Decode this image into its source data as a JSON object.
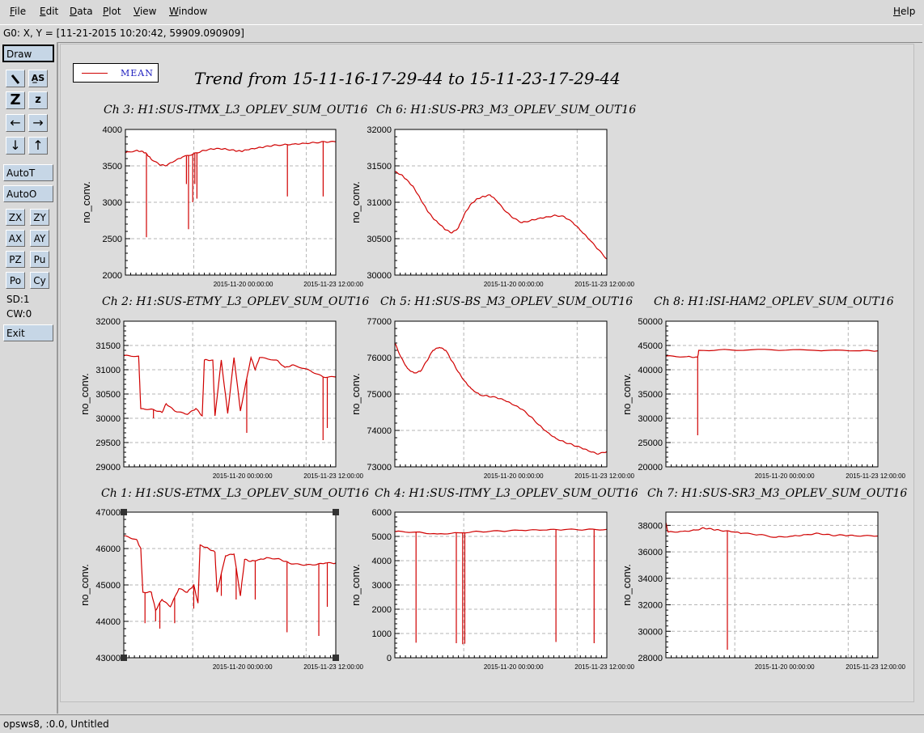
{
  "menubar": {
    "items": [
      {
        "label": "File",
        "name": "menu-file"
      },
      {
        "label": "Edit",
        "name": "menu-edit"
      },
      {
        "label": "Data",
        "name": "menu-data"
      },
      {
        "label": "Plot",
        "name": "menu-plot"
      },
      {
        "label": "View",
        "name": "menu-view"
      },
      {
        "label": "Window",
        "name": "menu-window"
      }
    ],
    "help": "Help"
  },
  "coord_readout": "G0: X, Y = [11-21-2015 10:20:42, 59909.090909]",
  "toolbox": {
    "draw": "Draw",
    "autot": "AutoT",
    "autoo": "AutoO",
    "zx": "ZX",
    "zy": "ZY",
    "ax": "AX",
    "ay": "AY",
    "pz": "PZ",
    "pu": "Pu",
    "po": "Po",
    "cy": "Cy",
    "sd": "SD:1",
    "cw": "CW:0",
    "exit": "Exit",
    "zoom_big": "Z",
    "zoom_small": "z",
    "icons": [
      "magnify-icon",
      "text-icon",
      "zoom-in-icon",
      "zoom-out-icon",
      "arrow-left-icon",
      "arrow-right-icon",
      "arrow-down-icon",
      "arrow-up-icon"
    ]
  },
  "legend": {
    "label": "MEAN",
    "color": "#d00000"
  },
  "main_title": "Trend from 15-11-16-17-29-44 to 15-11-23-17-29-44",
  "status": "opsws8, :0.0, Untitled",
  "colors": {
    "trace": "#d00000",
    "grid": "#b4b4b4",
    "accent": "#c6d6e6"
  },
  "chart_data": [
    {
      "type": "line",
      "title": "Ch 3: H1:SUS-ITMX_L3_OPLEV_SUM_OUT16",
      "ylabel": "no_conv.",
      "ylim": [
        2000,
        4000
      ],
      "yticks": [
        "2000",
        "2500",
        "3000",
        "3500",
        "4000"
      ],
      "xticks": [
        "2015-11-20 00:00:00",
        "2015-11-23 12:00:00"
      ],
      "xlim": [
        0,
        100
      ],
      "series": [
        {
          "values": [
            [
              0,
              3680
            ],
            [
              5,
              3710
            ],
            [
              8,
              3700
            ],
            [
              10,
              3670
            ],
            [
              12,
              3600
            ],
            [
              16,
              3520
            ],
            [
              19,
              3500
            ],
            [
              23,
              3560
            ],
            [
              27,
              3620
            ],
            [
              32,
              3660
            ],
            [
              36,
              3700
            ],
            [
              40,
              3730
            ],
            [
              44,
              3740
            ],
            [
              48,
              3730
            ],
            [
              52,
              3710
            ],
            [
              55,
              3700
            ],
            [
              58,
              3720
            ],
            [
              62,
              3740
            ],
            [
              66,
              3760
            ],
            [
              70,
              3780
            ],
            [
              75,
              3790
            ],
            [
              80,
              3800
            ],
            [
              85,
              3810
            ],
            [
              90,
              3820
            ],
            [
              95,
              3830
            ],
            [
              100,
              3830
            ]
          ]
        }
      ],
      "dips": [
        [
          10,
          2520
        ],
        [
          29,
          3250
        ],
        [
          30,
          2630
        ],
        [
          32,
          3000
        ],
        [
          33,
          3250
        ],
        [
          34,
          3050
        ],
        [
          77,
          3080
        ],
        [
          94,
          3080
        ]
      ]
    },
    {
      "type": "line",
      "title": "Ch 6: H1:SUS-PR3_M3_OPLEV_SUM_OUT16",
      "ylabel": "no_conv.",
      "ylim": [
        30000,
        32000
      ],
      "yticks": [
        "30000",
        "30500",
        "31000",
        "31500",
        "32000"
      ],
      "xticks": [
        "2015-11-20 00:00:00",
        "2015-11-23 12:00:00"
      ],
      "xlim": [
        0,
        100
      ],
      "series": [
        {
          "values": [
            [
              0,
              31420
            ],
            [
              3,
              31380
            ],
            [
              6,
              31300
            ],
            [
              9,
              31200
            ],
            [
              12,
              31050
            ],
            [
              15,
              30900
            ],
            [
              18,
              30780
            ],
            [
              21,
              30700
            ],
            [
              24,
              30620
            ],
            [
              27,
              30580
            ],
            [
              30,
              30650
            ],
            [
              33,
              30850
            ],
            [
              36,
              30980
            ],
            [
              39,
              31050
            ],
            [
              42,
              31080
            ],
            [
              45,
              31100
            ],
            [
              48,
              31020
            ],
            [
              52,
              30880
            ],
            [
              56,
              30780
            ],
            [
              60,
              30720
            ],
            [
              64,
              30750
            ],
            [
              68,
              30780
            ],
            [
              72,
              30800
            ],
            [
              76,
              30820
            ],
            [
              80,
              30800
            ],
            [
              84,
              30720
            ],
            [
              88,
              30600
            ],
            [
              92,
              30480
            ],
            [
              96,
              30350
            ],
            [
              100,
              30220
            ]
          ]
        }
      ],
      "dips": []
    },
    {
      "type": "line",
      "title": "Ch 2: H1:SUS-ETMY_L3_OPLEV_SUM_OUT16",
      "ylabel": "no_conv.",
      "ylim": [
        29000,
        32000
      ],
      "yticks": [
        "29000",
        "29500",
        "30000",
        "30500",
        "31000",
        "31500",
        "32000"
      ],
      "xticks": [
        "2015-11-20 00:00:00",
        "2015-11-23 12:00:00"
      ],
      "xlim": [
        0,
        100
      ],
      "series": [
        {
          "values": [
            [
              0,
              31290
            ],
            [
              7,
              31280
            ],
            [
              8,
              30200
            ],
            [
              14,
              30180
            ],
            [
              18,
              30120
            ],
            [
              20,
              30300
            ],
            [
              24,
              30150
            ],
            [
              30,
              30080
            ],
            [
              34,
              30200
            ],
            [
              37,
              30050
            ],
            [
              38,
              31200
            ],
            [
              42,
              31200
            ],
            [
              43,
              30050
            ],
            [
              46,
              31200
            ],
            [
              49,
              30100
            ],
            [
              52,
              31250
            ],
            [
              55,
              30150
            ],
            [
              60,
              31250
            ],
            [
              62,
              31000
            ],
            [
              64,
              31250
            ],
            [
              72,
              31200
            ],
            [
              76,
              31050
            ],
            [
              80,
              31100
            ],
            [
              88,
              30980
            ],
            [
              94,
              30850
            ],
            [
              100,
              30850
            ]
          ]
        }
      ],
      "dips": [
        [
          14,
          30000
        ],
        [
          58,
          29700
        ],
        [
          94,
          29550
        ],
        [
          96,
          29800
        ]
      ]
    },
    {
      "type": "line",
      "title": "Ch 5: H1:SUS-BS_M3_OPLEV_SUM_OUT16",
      "ylabel": "no_conv.",
      "ylim": [
        73000,
        77000
      ],
      "yticks": [
        "73000",
        "74000",
        "75000",
        "76000",
        "77000"
      ],
      "xticks": [
        "2015-11-20 00:00:00",
        "2015-11-23 12:00:00"
      ],
      "xlim": [
        0,
        100
      ],
      "series": [
        {
          "values": [
            [
              0,
              76400
            ],
            [
              3,
              76000
            ],
            [
              6,
              75700
            ],
            [
              9,
              75580
            ],
            [
              12,
              75620
            ],
            [
              15,
              75900
            ],
            [
              18,
              76200
            ],
            [
              21,
              76280
            ],
            [
              24,
              76200
            ],
            [
              27,
              75900
            ],
            [
              30,
              75600
            ],
            [
              33,
              75350
            ],
            [
              36,
              75150
            ],
            [
              40,
              74980
            ],
            [
              44,
              74940
            ],
            [
              48,
              74900
            ],
            [
              52,
              74820
            ],
            [
              56,
              74700
            ],
            [
              60,
              74580
            ],
            [
              64,
              74380
            ],
            [
              68,
              74150
            ],
            [
              72,
              73950
            ],
            [
              76,
              73780
            ],
            [
              80,
              73680
            ],
            [
              84,
              73600
            ],
            [
              88,
              73520
            ],
            [
              92,
              73420
            ],
            [
              96,
              73350
            ],
            [
              100,
              73420
            ]
          ]
        }
      ],
      "dips": []
    },
    {
      "type": "line",
      "title": "Ch 8: H1:ISI-HAM2_OPLEV_SUM_OUT16",
      "ylabel": "no_conv.",
      "ylim": [
        20000,
        50000
      ],
      "yticks": [
        "20000",
        "25000",
        "30000",
        "35000",
        "40000",
        "45000",
        "50000"
      ],
      "xticks": [
        "2015-11-20 00:00:00",
        "2015-11-23 12:00:00"
      ],
      "xlim": [
        0,
        100
      ],
      "series": [
        {
          "values": [
            [
              0,
              42800
            ],
            [
              10,
              42700
            ],
            [
              15,
              42600
            ],
            [
              15.5,
              44000
            ],
            [
              30,
              44100
            ],
            [
              50,
              44100
            ],
            [
              70,
              44000
            ],
            [
              90,
              43900
            ],
            [
              100,
              43900
            ]
          ]
        }
      ],
      "dips": [
        [
          15,
          26500
        ]
      ]
    },
    {
      "type": "line",
      "title": "Ch 1: H1:SUS-ETMX_L3_OPLEV_SUM_OUT16",
      "ylabel": "no_conv.",
      "ylim": [
        43000,
        47000
      ],
      "yticks": [
        "43000",
        "44000",
        "45000",
        "46000",
        "47000"
      ],
      "xticks": [
        "2015-11-20 00:00:00",
        "2015-11-23 12:00:00"
      ],
      "xlim": [
        0,
        100
      ],
      "series": [
        {
          "values": [
            [
              0,
              46350
            ],
            [
              6,
              46250
            ],
            [
              8,
              46000
            ],
            [
              9,
              44800
            ],
            [
              13,
              44800
            ],
            [
              15,
              44300
            ],
            [
              18,
              44600
            ],
            [
              22,
              44400
            ],
            [
              26,
              44900
            ],
            [
              30,
              44800
            ],
            [
              33,
              45000
            ],
            [
              35,
              44500
            ],
            [
              36,
              46100
            ],
            [
              40,
              46000
            ],
            [
              43,
              45900
            ],
            [
              44,
              44800
            ],
            [
              48,
              45800
            ],
            [
              52,
              45850
            ],
            [
              55,
              44700
            ],
            [
              57,
              45700
            ],
            [
              60,
              45650
            ],
            [
              64,
              45700
            ],
            [
              68,
              45750
            ],
            [
              74,
              45700
            ],
            [
              78,
              45600
            ],
            [
              84,
              45550
            ],
            [
              90,
              45550
            ],
            [
              95,
              45600
            ],
            [
              100,
              45600
            ]
          ]
        }
      ],
      "dips": [
        [
          10,
          43950
        ],
        [
          15,
          44000
        ],
        [
          17,
          43800
        ],
        [
          24,
          43950
        ],
        [
          33,
          44350
        ],
        [
          46,
          44700
        ],
        [
          53,
          44600
        ],
        [
          62,
          44600
        ],
        [
          77,
          43700
        ],
        [
          92,
          43600
        ],
        [
          96,
          44400
        ]
      ]
    },
    {
      "type": "line",
      "title": "Ch 4: H1:SUS-ITMY_L3_OPLEV_SUM_OUT16",
      "ylabel": "no_conv.",
      "ylim": [
        0,
        6000
      ],
      "yticks": [
        "0",
        "1000",
        "2000",
        "3000",
        "4000",
        "5000",
        "6000"
      ],
      "xticks": [
        "2015-11-20 00:00:00",
        "2015-11-23 12:00:00"
      ],
      "xlim": [
        0,
        100
      ],
      "series": [
        {
          "values": [
            [
              0,
              5200
            ],
            [
              10,
              5180
            ],
            [
              20,
              5100
            ],
            [
              30,
              5150
            ],
            [
              40,
              5200
            ],
            [
              50,
              5220
            ],
            [
              60,
              5250
            ],
            [
              70,
              5260
            ],
            [
              80,
              5280
            ],
            [
              90,
              5280
            ],
            [
              100,
              5290
            ]
          ]
        }
      ],
      "dips": [
        [
          10,
          620
        ],
        [
          29,
          600
        ],
        [
          32,
          560
        ],
        [
          33,
          580
        ],
        [
          76,
          650
        ],
        [
          94,
          600
        ]
      ]
    },
    {
      "type": "line",
      "title": "Ch 7: H1:SUS-SR3_M3_OPLEV_SUM_OUT16",
      "ylabel": "no_conv.",
      "ylim": [
        28000,
        39000
      ],
      "yticks": [
        "28000",
        "30000",
        "32000",
        "34000",
        "36000",
        "38000"
      ],
      "xticks": [
        "2015-11-20 00:00:00",
        "2015-11-23 12:00:00"
      ],
      "xlim": [
        0,
        100
      ],
      "series": [
        {
          "values": [
            [
              0,
              38200
            ],
            [
              1,
              37500
            ],
            [
              8,
              37550
            ],
            [
              14,
              37650
            ],
            [
              18,
              37800
            ],
            [
              22,
              37700
            ],
            [
              26,
              37600
            ],
            [
              32,
              37500
            ],
            [
              36,
              37400
            ],
            [
              44,
              37300
            ],
            [
              52,
              37100
            ],
            [
              60,
              37200
            ],
            [
              66,
              37300
            ],
            [
              72,
              37400
            ],
            [
              78,
              37250
            ],
            [
              84,
              37250
            ],
            [
              90,
              37200
            ],
            [
              100,
              37200
            ]
          ]
        }
      ],
      "dips": [
        [
          29,
          28600
        ]
      ]
    }
  ]
}
